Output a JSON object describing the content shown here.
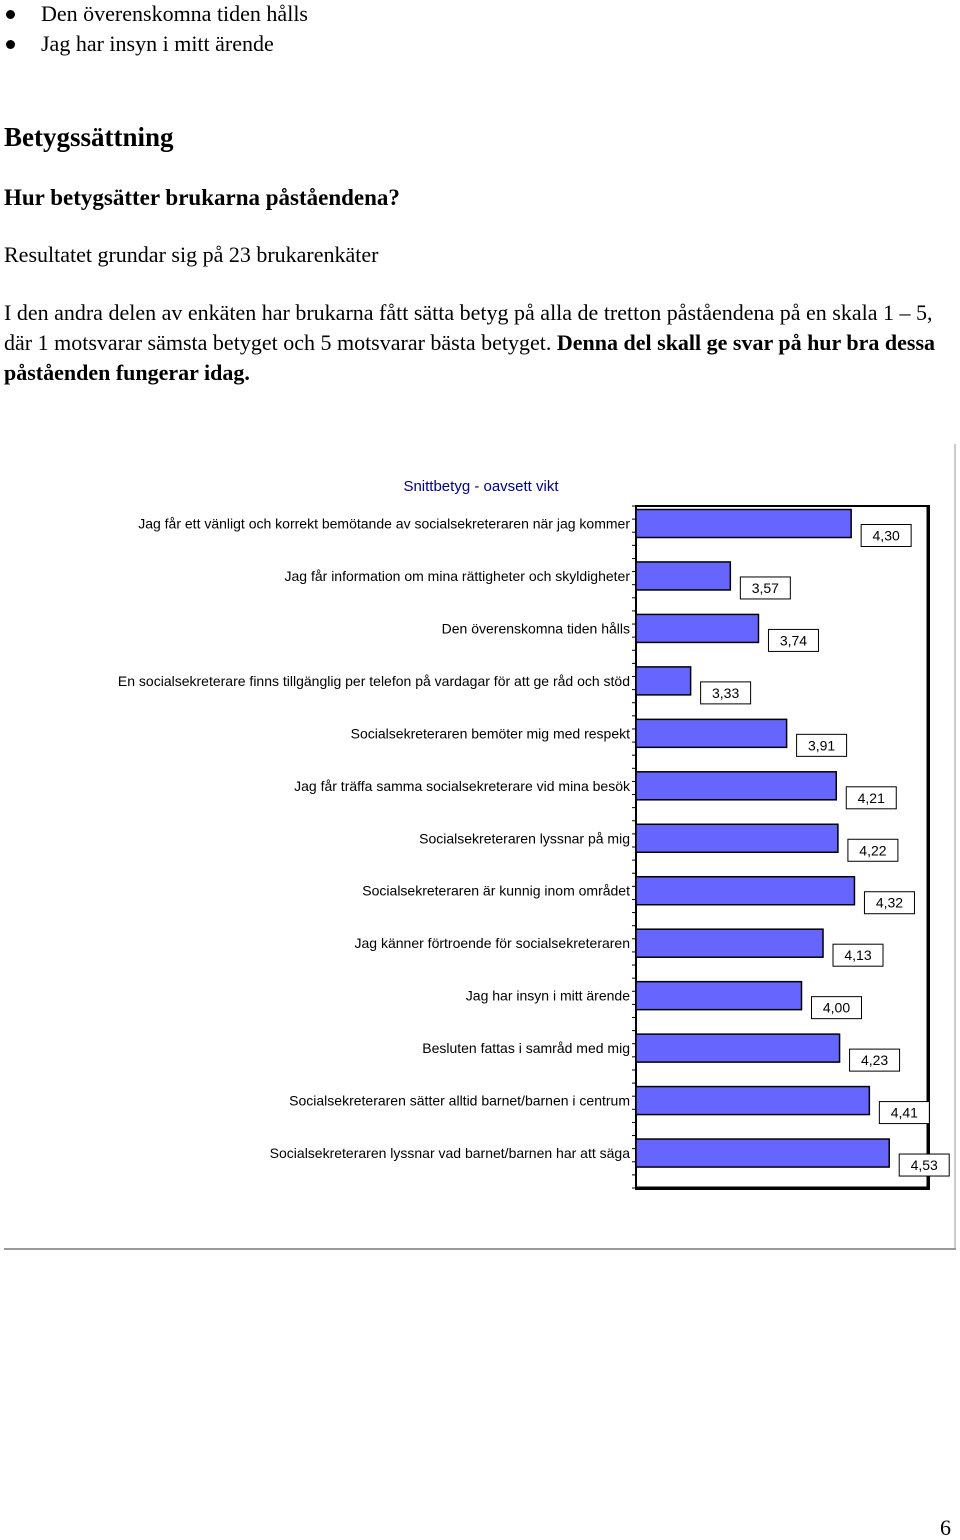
{
  "bullets": [
    {
      "text": "Den överenskomna tiden hålls"
    },
    {
      "text": "Jag har insyn i mitt ärende"
    }
  ],
  "heading": "Betygssättning",
  "subheading": "Hur betygsätter brukarna påståendena?",
  "basis": "Resultatet grundar sig på 23 brukarenkäter",
  "intro": {
    "text": "I den andra delen av enkäten har brukarna fått sätta betyg på alla de tretton påståendena på en skala 1 – 5, där 1 motsvarar sämsta betyget och 5 motsvarar bästa betyget.",
    "emphasis": "Denna del skall ge svar på hur bra dessa påståenden fungerar idag."
  },
  "chart_data": {
    "type": "bar",
    "orientation": "horizontal",
    "title": "Snittbetyg - oavsett vikt",
    "categories": [
      "Jag får ett vänligt och korrekt bemötande av socialsekreteraren när jag kommer",
      "Jag får information om mina rättigheter och skyldigheter",
      "Den överenskomna tiden hålls",
      "En socialsekreterare finns tillgänglig per telefon på vardagar för att ge råd och stöd",
      "Socialsekreteraren bemöter mig med respekt",
      "Jag får träffa samma socialsekreterare vid mina besök",
      "Socialsekreteraren lyssnar på mig",
      "Socialsekreteraren är kunnig inom området",
      "Jag känner förtroende för socialsekreteraren",
      "Jag har insyn i mitt ärende",
      "Besluten fattas i samråd med mig",
      "Socialsekreteraren sätter alltid barnet/barnen i centrum",
      "Socialsekreteraren lyssnar vad barnet/barnen har att säga"
    ],
    "values": [
      4.3,
      3.57,
      3.74,
      3.33,
      3.91,
      4.21,
      4.22,
      4.32,
      4.13,
      4.0,
      4.23,
      4.41,
      4.53
    ],
    "data_labels": [
      "4,30",
      "3,57",
      "3,74",
      "3,33",
      "3,91",
      "4,21",
      "4,22",
      "4,32",
      "4,13",
      "4,00",
      "4,23",
      "4,41",
      "4,53"
    ],
    "xlim": [
      1,
      5
    ],
    "grid": false,
    "colors": {
      "bar_fill": "#6666ff",
      "title": "#000080"
    }
  },
  "page_number": "6"
}
